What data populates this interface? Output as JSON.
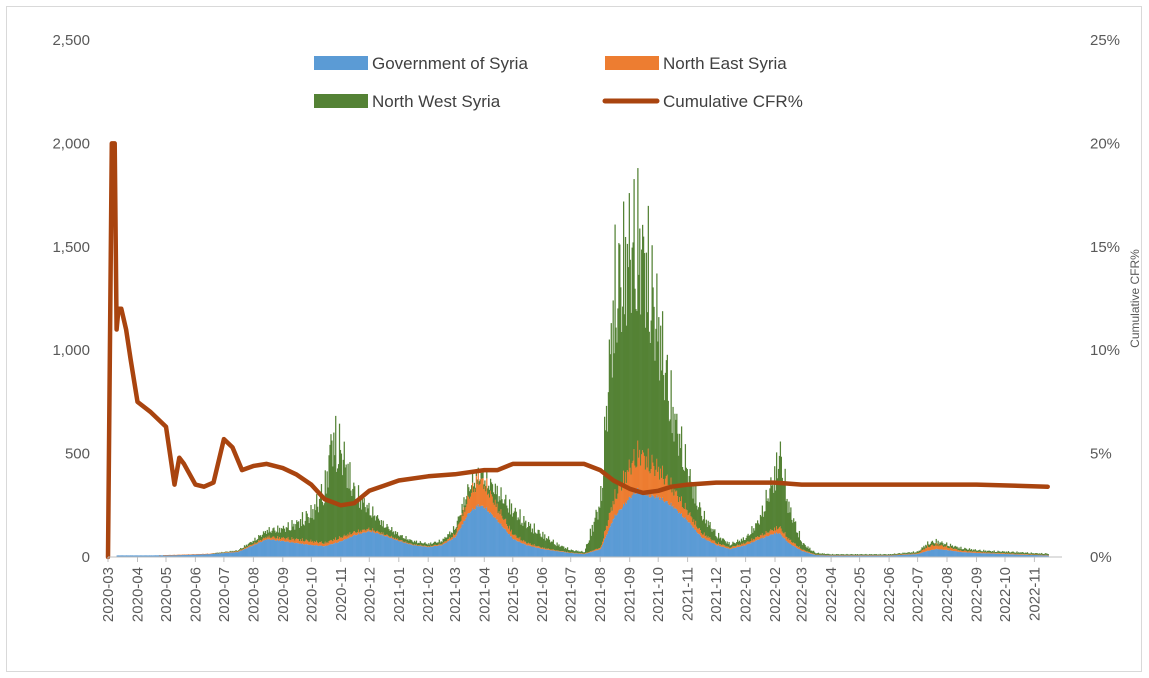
{
  "chart_data": {
    "type": "bar",
    "stacked": true,
    "x_axis": {
      "type": "date",
      "start": "2020-03-01",
      "end": "2022-11-30",
      "tick_labels": [
        "2020-03",
        "2020-04",
        "2020-05",
        "2020-06",
        "2020-07",
        "2020-08",
        "2020-09",
        "2020-10",
        "2020-11",
        "2020-12",
        "2021-01",
        "2021-02",
        "2021-03",
        "2021-04",
        "2021-05",
        "2021-06",
        "2021-07",
        "2021-08",
        "2021-09",
        "2021-10",
        "2021-11",
        "2021-12",
        "2022-01",
        "2022-02",
        "2022-03",
        "2022-04",
        "2022-05",
        "2022-06",
        "2022-07",
        "2022-08",
        "2022-09",
        "2022-10",
        "2022-11"
      ],
      "label": ""
    },
    "y_axis_left": {
      "range": [
        0,
        2500
      ],
      "tick_values": [
        0,
        500,
        1000,
        1500,
        2000,
        2500
      ],
      "tick_labels": [
        "0",
        "500",
        "1,000",
        "1,500",
        "2,000",
        "2,500"
      ],
      "label": ""
    },
    "y_axis_right": {
      "range": [
        0,
        25
      ],
      "tick_values": [
        0,
        5,
        10,
        15,
        20,
        25
      ],
      "tick_labels": [
        "0%",
        "5%",
        "10%",
        "15%",
        "20%",
        "25%"
      ],
      "label": "Cumulative CFR%"
    },
    "grid": false,
    "legend": {
      "placement": "top-center",
      "entries": [
        {
          "name": "Government of Syria",
          "color": "#5b9bd5",
          "kind": "bar"
        },
        {
          "name": "North East Syria",
          "color": "#ed7d31",
          "kind": "bar"
        },
        {
          "name": "North West Syria",
          "color": "#548235",
          "kind": "bar"
        },
        {
          "name": "Cumulative CFR%",
          "color": "#a9440f",
          "kind": "line"
        }
      ]
    },
    "series_bars_sampled": {
      "dates": [
        "2020-03-15",
        "2020-04-15",
        "2020-05-15",
        "2020-06-15",
        "2020-07-15",
        "2020-08-01",
        "2020-08-15",
        "2020-09-01",
        "2020-09-15",
        "2020-10-01",
        "2020-10-15",
        "2020-10-22",
        "2020-11-01",
        "2020-11-15",
        "2020-12-01",
        "2020-12-15",
        "2021-01-01",
        "2021-01-15",
        "2021-02-01",
        "2021-02-15",
        "2021-03-01",
        "2021-03-15",
        "2021-03-25",
        "2021-04-01",
        "2021-04-15",
        "2021-05-01",
        "2021-05-15",
        "2021-06-01",
        "2021-06-15",
        "2021-07-01",
        "2021-07-15",
        "2021-08-01",
        "2021-08-15",
        "2021-09-01",
        "2021-09-10",
        "2021-09-20",
        "2021-10-01",
        "2021-10-15",
        "2021-11-01",
        "2021-11-15",
        "2021-12-01",
        "2021-12-15",
        "2022-01-01",
        "2022-01-15",
        "2022-02-01",
        "2022-02-05",
        "2022-02-15",
        "2022-03-01",
        "2022-03-15",
        "2022-04-01",
        "2022-05-01",
        "2022-06-01",
        "2022-07-01",
        "2022-07-10",
        "2022-07-20",
        "2022-08-01",
        "2022-08-15",
        "2022-09-01",
        "2022-09-15",
        "2022-10-01",
        "2022-10-15",
        "2022-11-01",
        "2022-11-15"
      ],
      "series": [
        {
          "name": "Government of Syria",
          "values": [
            8,
            8,
            10,
            15,
            25,
            60,
            90,
            80,
            70,
            60,
            55,
            65,
            80,
            110,
            130,
            110,
            80,
            60,
            50,
            60,
            100,
            220,
            260,
            250,
            180,
            90,
            60,
            40,
            30,
            20,
            15,
            40,
            200,
            300,
            340,
            310,
            300,
            260,
            180,
            100,
            60,
            40,
            60,
            90,
            120,
            120,
            70,
            30,
            10,
            8,
            8,
            8,
            15,
            30,
            40,
            35,
            25,
            20,
            18,
            15,
            12,
            10,
            8
          ]
        },
        {
          "name": "North East Syria",
          "values": [
            0,
            0,
            2,
            2,
            5,
            10,
            15,
            20,
            25,
            25,
            20,
            25,
            25,
            20,
            15,
            10,
            8,
            5,
            5,
            8,
            20,
            100,
            170,
            150,
            80,
            30,
            15,
            8,
            5,
            3,
            3,
            10,
            120,
            200,
            240,
            220,
            180,
            120,
            60,
            30,
            15,
            10,
            15,
            20,
            30,
            40,
            25,
            10,
            3,
            2,
            2,
            2,
            5,
            25,
            30,
            20,
            10,
            8,
            5,
            5,
            5,
            3,
            3
          ]
        },
        {
          "name": "North West Syria",
          "values": [
            0,
            0,
            0,
            0,
            5,
            20,
            40,
            60,
            100,
            180,
            350,
            650,
            550,
            250,
            120,
            60,
            30,
            20,
            15,
            20,
            40,
            60,
            30,
            40,
            100,
            150,
            120,
            80,
            40,
            15,
            10,
            300,
            1300,
            1400,
            1350,
            1200,
            900,
            500,
            250,
            120,
            50,
            20,
            30,
            100,
            350,
            480,
            200,
            40,
            10,
            5,
            5,
            5,
            10,
            20,
            20,
            15,
            15,
            10,
            10,
            10,
            10,
            8,
            8
          ]
        }
      ]
    },
    "series_line": {
      "name": "Cumulative CFR%",
      "axis": "right",
      "x": [
        "2020-03-01",
        "2020-03-05",
        "2020-03-08",
        "2020-03-10",
        "2020-03-12",
        "2020-03-15",
        "2020-03-20",
        "2020-03-25",
        "2020-04-01",
        "2020-04-15",
        "2020-05-01",
        "2020-05-10",
        "2020-05-15",
        "2020-05-20",
        "2020-06-01",
        "2020-06-10",
        "2020-06-20",
        "2020-07-01",
        "2020-07-10",
        "2020-07-20",
        "2020-08-01",
        "2020-08-15",
        "2020-09-01",
        "2020-09-15",
        "2020-10-01",
        "2020-10-15",
        "2020-11-01",
        "2020-11-15",
        "2020-12-01",
        "2021-01-01",
        "2021-02-01",
        "2021-03-01",
        "2021-04-01",
        "2021-04-15",
        "2021-05-01",
        "2021-06-01",
        "2021-07-01",
        "2021-07-15",
        "2021-08-01",
        "2021-08-15",
        "2021-09-01",
        "2021-09-15",
        "2021-10-01",
        "2021-10-15",
        "2021-11-01",
        "2021-12-01",
        "2022-01-01",
        "2022-02-01",
        "2022-03-01",
        "2022-06-01",
        "2022-09-01",
        "2022-11-15"
      ],
      "values": [
        0,
        20,
        20,
        11,
        12,
        12,
        11,
        9.5,
        7.5,
        7.0,
        6.3,
        3.5,
        4.8,
        4.5,
        3.5,
        3.4,
        3.6,
        5.7,
        5.3,
        4.2,
        4.4,
        4.5,
        4.3,
        4.0,
        3.5,
        2.8,
        2.5,
        2.6,
        3.2,
        3.7,
        3.9,
        4.0,
        4.2,
        4.2,
        4.5,
        4.5,
        4.5,
        4.5,
        4.2,
        3.7,
        3.3,
        3.1,
        3.2,
        3.4,
        3.5,
        3.6,
        3.6,
        3.6,
        3.5,
        3.5,
        3.5,
        3.4
      ]
    }
  }
}
